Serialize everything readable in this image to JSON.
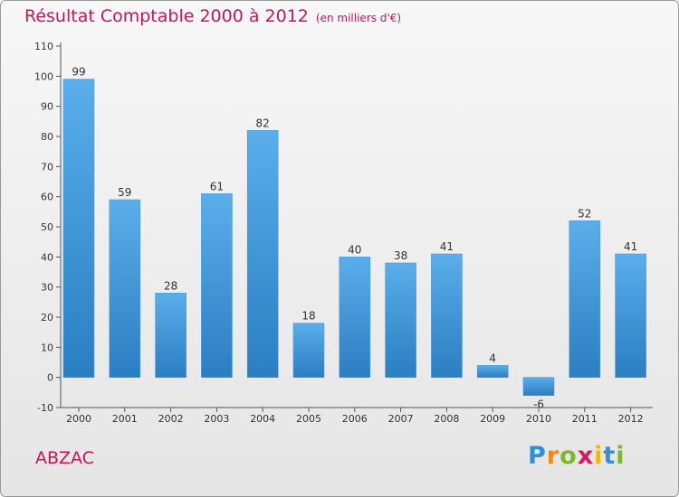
{
  "title": "Résultat Comptable 2000 à 2012",
  "subtitle": "(en milliers d'€)",
  "commune": "ABZAC",
  "logo": {
    "letters": [
      "P",
      "r",
      "o",
      "x",
      "i",
      "t",
      "i"
    ],
    "colors": [
      "#2f8fd8",
      "#f08a1c",
      "#7cb82f",
      "#d81b60",
      "#f5b800",
      "#2f8fd8",
      "#7cb82f"
    ]
  },
  "chart_data": {
    "type": "bar",
    "categories": [
      "2000",
      "2001",
      "2002",
      "2003",
      "2004",
      "2005",
      "2006",
      "2007",
      "2008",
      "2009",
      "2010",
      "2011",
      "2012"
    ],
    "values": [
      99,
      59,
      28,
      61,
      82,
      18,
      40,
      38,
      41,
      4,
      -6,
      52,
      41
    ],
    "yticks": [
      -10,
      0,
      10,
      20,
      30,
      40,
      50,
      60,
      70,
      80,
      90,
      100,
      110
    ],
    "ylim": [
      -10,
      110
    ],
    "xlabel": "",
    "ylabel": "",
    "grid": false,
    "colors": {
      "bar_top": "#5aaeea",
      "bar_bottom": "#2a7ec2",
      "axis": "#555555",
      "label": "#333333"
    }
  }
}
